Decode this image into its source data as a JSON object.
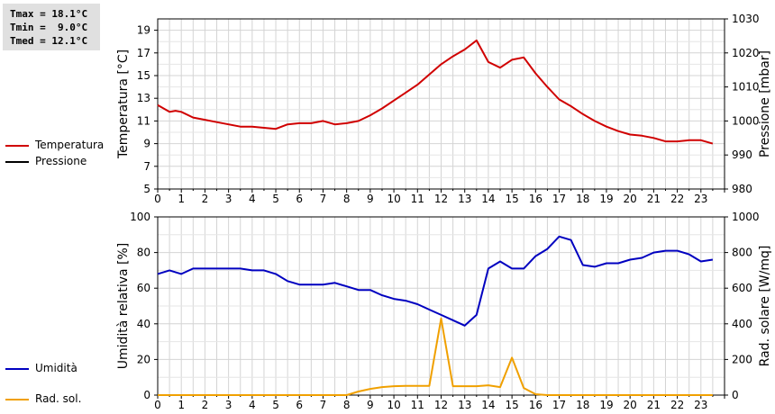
{
  "stats": {
    "tmax": "Tmax = 18.1°C",
    "tmin": "Tmin =  9.0°C",
    "tmed": "Tmed = 12.1°C"
  },
  "legend_top": [
    {
      "label": "Temperatura",
      "color": "#d00000"
    },
    {
      "label": "Pressione",
      "color": "#000000"
    }
  ],
  "legend_bottom": [
    {
      "label": "Umidità",
      "color": "#0000c0"
    },
    {
      "label": "Rad. sol.",
      "color": "#f0a000"
    }
  ],
  "chart_data": [
    {
      "type": "line",
      "ylabel": "Temperatura [°C]",
      "y2label": "Pressione [mbar]",
      "xlim": [
        0,
        24
      ],
      "ylim": [
        5,
        20
      ],
      "y2lim": [
        980,
        1030
      ],
      "xticks": [
        "0",
        "1",
        "2",
        "3",
        "4",
        "5",
        "6",
        "7",
        "8",
        "9",
        "10",
        "11",
        "12",
        "13",
        "14",
        "15",
        "16",
        "17",
        "18",
        "19",
        "20",
        "21",
        "22",
        "23"
      ],
      "yticks": [
        "5",
        "7",
        "9",
        "11",
        "13",
        "15",
        "17",
        "19"
      ],
      "y2ticks": [
        "980",
        "990",
        "1000",
        "1010",
        "1020",
        "1030"
      ],
      "grid": true,
      "series": [
        {
          "name": "Temperatura",
          "color": "#d00000",
          "axis": "left",
          "x": [
            0,
            0.5,
            0.75,
            1,
            1.5,
            2,
            2.5,
            3,
            3.5,
            4,
            4.5,
            5,
            5.5,
            6,
            6.5,
            7,
            7.5,
            8,
            8.5,
            9,
            9.5,
            10,
            10.5,
            11,
            11.5,
            12,
            12.5,
            13,
            13.5,
            14,
            14.5,
            15,
            15.5,
            16,
            16.5,
            17,
            17.5,
            18,
            18.5,
            19,
            19.5,
            20,
            20.5,
            21,
            21.5,
            22,
            22.5,
            23,
            23.5
          ],
          "values": [
            12.4,
            11.8,
            11.9,
            11.8,
            11.3,
            11.1,
            10.9,
            10.7,
            10.5,
            10.5,
            10.4,
            10.3,
            10.7,
            10.8,
            10.8,
            11.0,
            10.7,
            10.8,
            11.0,
            11.5,
            12.1,
            12.8,
            13.5,
            14.2,
            15.1,
            16.0,
            16.7,
            17.3,
            18.1,
            16.2,
            15.7,
            16.4,
            16.6,
            15.2,
            14.0,
            12.9,
            12.3,
            11.6,
            11.0,
            10.5,
            10.1,
            9.8,
            9.7,
            9.5,
            9.2,
            9.2,
            9.3,
            9.3,
            9.0
          ]
        }
      ]
    },
    {
      "type": "line",
      "ylabel": "Umidità relativa [%]",
      "y2label": "Rad. solare [W/mq]",
      "xlim": [
        0,
        24
      ],
      "ylim": [
        0,
        100
      ],
      "y2lim": [
        0,
        1000
      ],
      "xticks": [
        "0",
        "1",
        "2",
        "3",
        "4",
        "5",
        "6",
        "7",
        "8",
        "9",
        "10",
        "11",
        "12",
        "13",
        "14",
        "15",
        "16",
        "17",
        "18",
        "19",
        "20",
        "21",
        "22",
        "23"
      ],
      "yticks": [
        "0",
        "20",
        "40",
        "60",
        "80",
        "100"
      ],
      "y2ticks": [
        "0",
        "200",
        "400",
        "600",
        "800",
        "1000"
      ],
      "grid": true,
      "series": [
        {
          "name": "Umidità",
          "color": "#0000c0",
          "axis": "left",
          "x": [
            0,
            0.5,
            1,
            1.5,
            2,
            2.5,
            3,
            3.5,
            4,
            4.5,
            5,
            5.5,
            6,
            6.5,
            7,
            7.5,
            8,
            8.5,
            9,
            9.5,
            10,
            10.5,
            11,
            11.5,
            12,
            12.5,
            13,
            13.5,
            14,
            14.5,
            15,
            15.5,
            16,
            16.5,
            17,
            17.5,
            18,
            18.5,
            19,
            19.5,
            20,
            20.5,
            21,
            21.5,
            22,
            22.5,
            23,
            23.5
          ],
          "values": [
            68,
            70,
            68,
            71,
            71,
            71,
            71,
            71,
            70,
            70,
            68,
            64,
            62,
            62,
            62,
            63,
            61,
            59,
            59,
            56,
            54,
            53,
            51,
            48,
            45,
            42,
            39,
            45,
            71,
            75,
            71,
            71,
            78,
            82,
            89,
            87,
            73,
            72,
            74,
            74,
            76,
            77,
            80,
            81,
            81,
            79,
            75,
            76
          ]
        },
        {
          "name": "Rad. sol.",
          "color": "#f0a000",
          "axis": "right",
          "x": [
            0,
            8,
            8.5,
            9,
            9.5,
            10,
            10.5,
            11,
            11.5,
            12,
            12.5,
            13,
            13.5,
            14,
            14.5,
            15,
            15.5,
            16,
            16.5,
            17,
            23.5
          ],
          "values": [
            0,
            0,
            20,
            35,
            45,
            50,
            52,
            52,
            52,
            430,
            50,
            50,
            50,
            55,
            45,
            210,
            40,
            5,
            0,
            0,
            0
          ]
        }
      ]
    }
  ]
}
